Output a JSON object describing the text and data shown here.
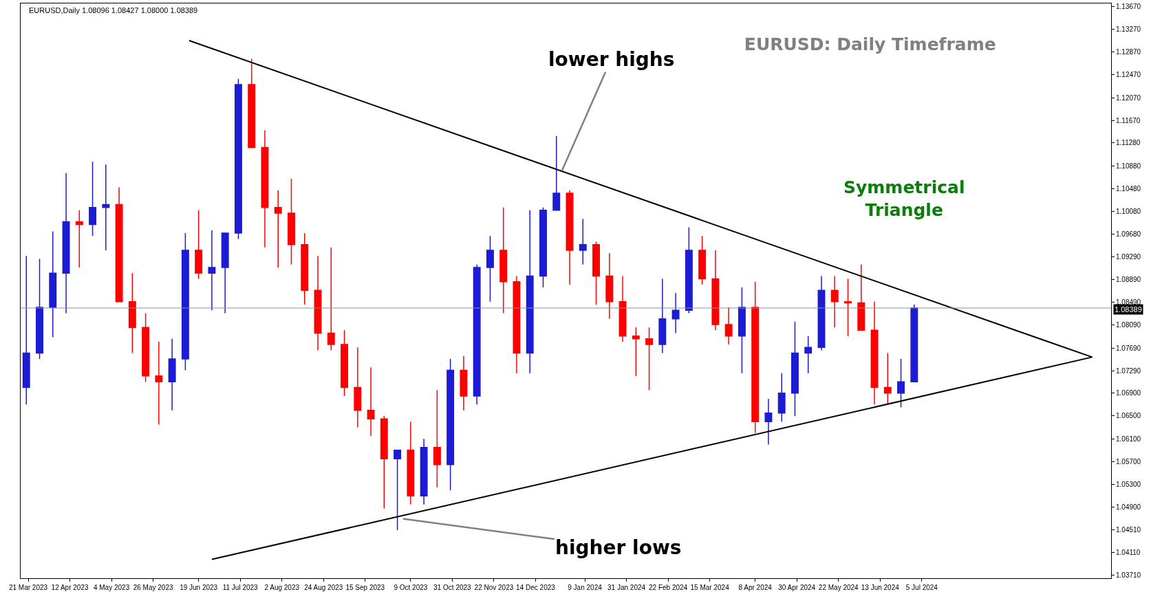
{
  "chart_data": {
    "type": "candlestick",
    "title": "EURUSD: Daily Timeframe",
    "annotations": [
      "EURUSD,Daily 1.08096 1.08427 1.08000 1.08389",
      {
        "text": "lower highs",
        "x": "2023-12-28",
        "y": 1.108
      },
      {
        "text": "higher lows",
        "x": "2023-10-05",
        "y": 1.047
      },
      "Symmetrical Triangle"
    ],
    "series": [
      {
        "x": [
          "2023-03-20",
          "2023-03-27",
          "2023-04-03",
          "2023-04-10",
          "2023-04-17",
          "2023-04-24",
          "2023-05-01",
          "2023-05-08",
          "2023-05-15",
          "2023-05-22",
          "2023-05-29",
          "2023-06-05",
          "2023-06-12",
          "2023-06-19",
          "2023-06-26",
          "2023-07-03",
          "2023-07-10",
          "2023-07-17",
          "2023-07-24",
          "2023-07-31",
          "2023-08-07",
          "2023-08-14",
          "2023-08-21",
          "2023-08-28",
          "2023-09-04",
          "2023-09-11",
          "2023-09-18",
          "2023-09-25",
          "2023-10-02",
          "2023-10-09",
          "2023-10-16",
          "2023-10-23",
          "2023-10-30",
          "2023-11-06",
          "2023-11-13",
          "2023-11-20",
          "2023-11-27",
          "2023-12-04",
          "2023-12-11",
          "2023-12-18",
          "2023-12-25",
          "2024-01-01",
          "2024-01-08",
          "2024-01-15",
          "2024-01-22",
          "2024-01-29",
          "2024-02-05",
          "2024-02-12",
          "2024-02-19",
          "2024-02-26",
          "2024-03-04",
          "2024-03-11",
          "2024-03-18",
          "2024-03-25",
          "2024-04-01",
          "2024-04-08",
          "2024-04-15",
          "2024-04-22",
          "2024-04-29",
          "2024-05-06",
          "2024-05-13",
          "2024-05-20",
          "2024-05-27",
          "2024-06-03",
          "2024-06-10",
          "2024-06-17",
          "2024-06-24",
          "2024-07-01"
        ],
        "ohlc": [
          [
            1.07,
            1.093,
            1.067,
            1.076
          ],
          [
            1.076,
            1.0925,
            1.075,
            1.084
          ],
          [
            1.084,
            1.0973,
            1.0788,
            1.09
          ],
          [
            1.09,
            1.1075,
            1.083,
            1.099
          ],
          [
            1.099,
            1.101,
            1.091,
            1.0985
          ],
          [
            1.0985,
            1.1095,
            1.0965,
            1.1015
          ],
          [
            1.1015,
            1.109,
            1.094,
            1.102
          ],
          [
            1.102,
            1.105,
            1.085,
            1.085
          ],
          [
            1.085,
            1.09,
            1.076,
            1.0805
          ],
          [
            1.0805,
            1.083,
            1.071,
            1.072
          ],
          [
            1.072,
            1.078,
            1.0635,
            1.071
          ],
          [
            1.071,
            1.0785,
            1.066,
            1.075
          ],
          [
            1.075,
            1.097,
            1.073,
            1.094
          ],
          [
            1.094,
            1.101,
            1.089,
            1.09
          ],
          [
            1.09,
            1.0975,
            1.0835,
            1.091
          ],
          [
            1.091,
            1.097,
            1.083,
            1.097
          ],
          [
            1.097,
            1.124,
            1.096,
            1.123
          ],
          [
            1.123,
            1.1275,
            1.112,
            1.112
          ],
          [
            1.112,
            1.115,
            1.0945,
            1.1015
          ],
          [
            1.1015,
            1.1045,
            1.091,
            1.1005
          ],
          [
            1.1005,
            1.1065,
            1.0915,
            1.095
          ],
          [
            1.095,
            1.097,
            1.0845,
            1.087
          ],
          [
            1.087,
            1.093,
            1.0765,
            1.0795
          ],
          [
            1.0795,
            1.0945,
            1.0765,
            1.0775
          ],
          [
            1.0775,
            1.08,
            1.0685,
            1.07
          ],
          [
            1.07,
            1.077,
            1.063,
            1.066
          ],
          [
            1.066,
            1.0735,
            1.0615,
            1.0645
          ],
          [
            1.0645,
            1.065,
            1.0488,
            1.0575
          ],
          [
            1.0575,
            1.059,
            1.045,
            1.059
          ],
          [
            1.059,
            1.064,
            1.0495,
            1.051
          ],
          [
            1.051,
            1.061,
            1.0495,
            1.0595
          ],
          [
            1.0595,
            1.0695,
            1.0525,
            1.0565
          ],
          [
            1.0565,
            1.075,
            1.052,
            1.073
          ],
          [
            1.073,
            1.0755,
            1.066,
            1.0685
          ],
          [
            1.0685,
            1.0915,
            1.067,
            1.091
          ],
          [
            1.091,
            1.0965,
            1.085,
            1.094
          ],
          [
            1.094,
            1.1015,
            1.083,
            1.0885
          ],
          [
            1.0885,
            1.0895,
            1.0725,
            1.076
          ],
          [
            1.076,
            1.101,
            1.0725,
            1.0895
          ],
          [
            1.0895,
            1.1015,
            1.0875,
            1.101
          ],
          [
            1.101,
            1.114,
            1.101,
            1.104
          ],
          [
            1.104,
            1.1045,
            1.088,
            1.094
          ],
          [
            1.094,
            1.0995,
            1.0915,
            1.095
          ],
          [
            1.095,
            1.0955,
            1.0845,
            1.0895
          ],
          [
            1.0895,
            1.0935,
            1.082,
            1.085
          ],
          [
            1.085,
            1.0895,
            1.078,
            1.079
          ],
          [
            1.079,
            1.0805,
            1.072,
            1.0785
          ],
          [
            1.0785,
            1.0805,
            1.0695,
            1.0775
          ],
          [
            1.0775,
            1.089,
            1.076,
            1.082
          ],
          [
            1.082,
            1.0865,
            1.0795,
            1.0835
          ],
          [
            1.0835,
            1.098,
            1.083,
            1.094
          ],
          [
            1.094,
            1.0965,
            1.088,
            1.089
          ],
          [
            1.089,
            1.094,
            1.08,
            1.081
          ],
          [
            1.081,
            1.084,
            1.0775,
            1.079
          ],
          [
            1.079,
            1.0875,
            1.0725,
            1.084
          ],
          [
            1.084,
            1.0885,
            1.062,
            1.064
          ],
          [
            1.064,
            1.068,
            1.06,
            1.0655
          ],
          [
            1.0655,
            1.0725,
            1.064,
            1.069
          ],
          [
            1.069,
            1.0815,
            1.065,
            1.076
          ],
          [
            1.076,
            1.079,
            1.0725,
            1.077
          ],
          [
            1.077,
            1.0895,
            1.0765,
            1.087
          ],
          [
            1.087,
            1.0895,
            1.0805,
            1.085
          ],
          [
            1.085,
            1.089,
            1.079,
            1.0848
          ],
          [
            1.0848,
            1.0915,
            1.08,
            1.08
          ],
          [
            1.08,
            1.085,
            1.067,
            1.07
          ],
          [
            1.07,
            1.076,
            1.067,
            1.069
          ],
          [
            1.069,
            1.075,
            1.0665,
            1.071
          ],
          [
            1.071,
            1.0845,
            1.071,
            1.0839
          ]
        ],
        "colors": [
          "#1c1cd4",
          "#1c1cd4",
          "#1c1cd4",
          "#1c1cd4",
          "#ff0000",
          "#1c1cd4",
          "#1c1cd4",
          "#ff0000",
          "#ff0000",
          "#ff0000",
          "#ff0000",
          "#1c1cd4",
          "#1c1cd4",
          "#ff0000",
          "#1c1cd4",
          "#1c1cd4",
          "#1c1cd4",
          "#ff0000",
          "#ff0000",
          "#ff0000",
          "#ff0000",
          "#ff0000",
          "#ff0000",
          "#ff0000",
          "#ff0000",
          "#ff0000",
          "#ff0000",
          "#ff0000",
          "#1c1cd4",
          "#ff0000",
          "#1c1cd4",
          "#ff0000",
          "#1c1cd4",
          "#ff0000",
          "#1c1cd4",
          "#1c1cd4",
          "#ff0000",
          "#ff0000",
          "#1c1cd4",
          "#1c1cd4",
          "#1c1cd4",
          "#ff0000",
          "#1c1cd4",
          "#ff0000",
          "#ff0000",
          "#ff0000",
          "#ff0000",
          "#ff0000",
          "#1c1cd4",
          "#1c1cd4",
          "#1c1cd4",
          "#ff0000",
          "#ff0000",
          "#ff0000",
          "#1c1cd4",
          "#ff0000",
          "#1c1cd4",
          "#1c1cd4",
          "#1c1cd4",
          "#1c1cd4",
          "#1c1cd4",
          "#ff0000",
          "#ff0000",
          "#ff0000",
          "#ff0000",
          "#ff0000",
          "#1c1cd4",
          "#1c1cd4"
        ]
      },
      {
        "type": "line",
        "color": "#000000",
        "x": [
          "2023-06-14",
          "2024-10-03"
        ],
        "values": [
          1.1307,
          1.0753
        ]
      },
      {
        "type": "line",
        "color": "#000000",
        "x": [
          "2023-06-26",
          "2024-10-03"
        ],
        "values": [
          1.0399,
          1.0753
        ]
      }
    ],
    "ref_lines": [
      {
        "axis": "y",
        "value": 1.08389,
        "label": "1.08389",
        "color": "#8090a0"
      }
    ],
    "xlim": [
      "2023-03-17",
      "2024-10-13"
    ],
    "xticks": [
      {
        "value": "2023-03-21",
        "label": "21 Mar 2023"
      },
      {
        "value": "2023-04-12",
        "label": "12 Apr 2023"
      },
      {
        "value": "2023-05-04",
        "label": "4 May 2023"
      },
      {
        "value": "2023-05-26",
        "label": "26 May 2023"
      },
      {
        "value": "2023-06-19",
        "label": "19 Jun 2023"
      },
      {
        "value": "2023-07-11",
        "label": "11 Jul 2023"
      },
      {
        "value": "2023-08-02",
        "label": "2 Aug 2023"
      },
      {
        "value": "2023-08-24",
        "label": "24 Aug 2023"
      },
      {
        "value": "2023-09-15",
        "label": "15 Sep 2023"
      },
      {
        "value": "2023-10-09",
        "label": "9 Oct 2023"
      },
      {
        "value": "2023-10-31",
        "label": "31 Oct 2023"
      },
      {
        "value": "2023-11-22",
        "label": "22 Nov 2023"
      },
      {
        "value": "2023-12-14",
        "label": "14 Dec 2023"
      },
      {
        "value": "2024-01-09",
        "label": "9 Jan 2024"
      },
      {
        "value": "2024-01-31",
        "label": "31 Jan 2024"
      },
      {
        "value": "2024-02-22",
        "label": "22 Feb 2024"
      },
      {
        "value": "2024-03-15",
        "label": "15 Mar 2024"
      },
      {
        "value": "2024-04-08",
        "label": "8 Apr 2024"
      },
      {
        "value": "2024-04-30",
        "label": "30 Apr 2024"
      },
      {
        "value": "2024-05-22",
        "label": "22 May 2024"
      },
      {
        "value": "2024-06-13",
        "label": "13 Jun 2024"
      },
      {
        "value": "2024-07-05",
        "label": "5 Jul 2024"
      }
    ],
    "ylim": [
      1.0366,
      1.1372
    ],
    "yticks": [
      {
        "value": 1.0371,
        "label": "1.03710"
      },
      {
        "value": 1.0411,
        "label": "1.04110"
      },
      {
        "value": 1.0451,
        "label": "1.04510"
      },
      {
        "value": 1.049,
        "label": "1.04900"
      },
      {
        "value": 1.053,
        "label": "1.05300"
      },
      {
        "value": 1.057,
        "label": "1.05700"
      },
      {
        "value": 1.061,
        "label": "1.06100"
      },
      {
        "value": 1.065,
        "label": "1.06500"
      },
      {
        "value": 1.069,
        "label": "1.06900"
      },
      {
        "value": 1.0729,
        "label": "1.07290"
      },
      {
        "value": 1.0769,
        "label": "1.07690"
      },
      {
        "value": 1.0809,
        "label": "1.08090"
      },
      {
        "value": 1.0849,
        "label": "1.08490"
      },
      {
        "value": 1.0889,
        "label": "1.08890"
      },
      {
        "value": 1.0929,
        "label": "1.09290"
      },
      {
        "value": 1.0968,
        "label": "1.09680"
      },
      {
        "value": 1.1008,
        "label": "1.10080"
      },
      {
        "value": 1.1048,
        "label": "1.10480"
      },
      {
        "value": 1.1088,
        "label": "1.10880"
      },
      {
        "value": 1.1128,
        "label": "1.11280"
      },
      {
        "value": 1.1167,
        "label": "1.11670"
      },
      {
        "value": 1.1207,
        "label": "1.12070"
      },
      {
        "value": 1.1247,
        "label": "1.12470"
      },
      {
        "value": 1.1287,
        "label": "1.12870"
      },
      {
        "value": 1.1327,
        "label": "1.13270"
      },
      {
        "value": 1.1367,
        "label": "1.13670"
      }
    ],
    "grid": false
  }
}
